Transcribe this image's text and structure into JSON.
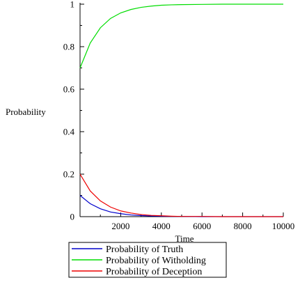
{
  "chart_data": {
    "type": "line",
    "title": "",
    "xlabel": "Time",
    "ylabel": "Probability",
    "xlim": [
      0,
      10000
    ],
    "ylim": [
      0,
      1
    ],
    "xticks": [
      2000,
      4000,
      6000,
      8000,
      10000
    ],
    "xtick_labels": [
      "2000",
      "4000",
      "6000",
      "8000",
      "10000"
    ],
    "yticks": [
      0,
      0.2,
      0.4,
      0.6,
      0.8,
      1
    ],
    "ytick_labels": [
      "0",
      "0.2",
      "0.4",
      "0.6",
      "0.8",
      "1"
    ],
    "grid": false,
    "legend_position": "bottom-center",
    "x": [
      0,
      500,
      1000,
      1500,
      2000,
      2500,
      3000,
      3500,
      4000,
      4500,
      5000,
      6000,
      7000,
      8000,
      9000,
      10000
    ],
    "series": [
      {
        "name": "Probability of Truth",
        "color": "#0000cc",
        "values": [
          0.1,
          0.061,
          0.037,
          0.022,
          0.014,
          0.008,
          0.005,
          0.003,
          0.002,
          0.001,
          0.001,
          0.0,
          0.0,
          0.0,
          0.0,
          0.0
        ]
      },
      {
        "name": "Probability of Witholding",
        "color": "#00dd00",
        "values": [
          0.7,
          0.817,
          0.889,
          0.933,
          0.959,
          0.975,
          0.985,
          0.991,
          0.995,
          0.997,
          0.998,
          0.999,
          1.0,
          1.0,
          1.0,
          1.0
        ]
      },
      {
        "name": "Probability of Deception",
        "color": "#ee0000",
        "values": [
          0.2,
          0.121,
          0.074,
          0.045,
          0.027,
          0.017,
          0.01,
          0.006,
          0.004,
          0.002,
          0.001,
          0.001,
          0.0,
          0.0,
          0.0,
          0.0
        ]
      }
    ]
  }
}
